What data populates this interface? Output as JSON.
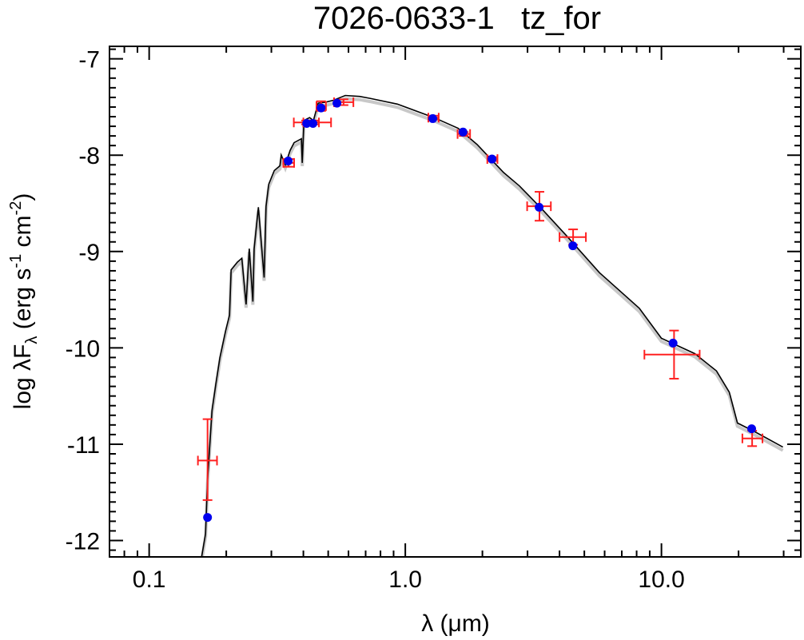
{
  "chart_data": {
    "type": "scatter",
    "title": "7026-0633-1   tz_for",
    "xlabel": "λ (μm)",
    "ylabel": {
      "prefix": "log λF",
      "sub": "λ",
      "units_open": " (erg s",
      "sup1": "-1",
      "units_mid": " cm",
      "sup2": "-2",
      "units_close": ")"
    },
    "x_scale": "log",
    "xlim": [
      0.07,
      35
    ],
    "ylim": [
      -12.17,
      -6.87
    ],
    "x_ticks": [
      {
        "value": 0.1,
        "label": "0.1"
      },
      {
        "value": 1.0,
        "label": "1.0"
      },
      {
        "value": 10.0,
        "label": "10.0"
      }
    ],
    "y_ticks": [
      {
        "value": -7,
        "label": "-7"
      },
      {
        "value": -8,
        "label": "-8"
      },
      {
        "value": -9,
        "label": "-9"
      },
      {
        "value": -10,
        "label": "-10"
      },
      {
        "value": -11,
        "label": "-11"
      },
      {
        "value": -12,
        "label": "-12"
      }
    ],
    "grid": false,
    "colors": {
      "model": "#000000",
      "model_shadow": "#c8c8c8",
      "observed": "#ff2020",
      "synthetic": "#0000ee"
    },
    "model_curve": {
      "x": [
        0.16,
        0.166,
        0.169,
        0.176,
        0.182,
        0.189,
        0.199,
        0.206,
        0.209,
        0.221,
        0.23,
        0.239,
        0.246,
        0.254,
        0.257,
        0.267,
        0.281,
        0.286,
        0.293,
        0.308,
        0.324,
        0.328,
        0.34,
        0.355,
        0.368,
        0.393,
        0.396,
        0.402,
        0.423,
        0.438,
        0.457,
        0.488,
        0.524,
        0.583,
        0.664,
        0.729,
        0.931,
        1.295,
        1.607,
        1.909,
        2.42,
        2.79,
        3.39,
        4.24,
        5.73,
        8.2,
        10.0,
        13.5,
        16.4,
        18.4,
        19.8,
        23.5,
        29.8
      ],
      "y": [
        -12.18,
        -11.93,
        -11.37,
        -10.65,
        -10.38,
        -10.1,
        -9.82,
        -9.66,
        -9.19,
        -9.11,
        -9.07,
        -9.55,
        -8.97,
        -9.52,
        -8.97,
        -8.54,
        -9.27,
        -8.53,
        -8.3,
        -8.16,
        -8.11,
        -8.0,
        -8.1,
        -7.95,
        -7.87,
        -7.83,
        -8.08,
        -7.64,
        -7.61,
        -7.64,
        -7.46,
        -7.45,
        -7.43,
        -7.38,
        -7.39,
        -7.41,
        -7.47,
        -7.61,
        -7.72,
        -7.89,
        -8.18,
        -8.32,
        -8.55,
        -8.83,
        -9.22,
        -9.59,
        -9.9,
        -10.06,
        -10.24,
        -10.46,
        -10.78,
        -10.88,
        -11.03
      ]
    },
    "observed": [
      {
        "x": 0.169,
        "y": -11.17,
        "xlo": 0.155,
        "xhi": 0.184,
        "ylo": -11.58,
        "yhi": -10.74
      },
      {
        "x": 0.35,
        "y": -8.08,
        "xlo": 0.334,
        "xhi": 0.368,
        "ylo": -8.12,
        "yhi": -8.04
      },
      {
        "x": 0.41,
        "y": -7.66,
        "xlo": 0.367,
        "xhi": 0.46,
        "ylo": -7.68,
        "yhi": -7.64
      },
      {
        "x": 0.44,
        "y": -7.66,
        "xlo": 0.4,
        "xhi": 0.513,
        "ylo": -7.68,
        "yhi": -7.64
      },
      {
        "x": 0.469,
        "y": -7.49,
        "xlo": 0.45,
        "xhi": 0.49,
        "ylo": -7.54,
        "yhi": -7.44
      },
      {
        "x": 0.574,
        "y": -7.45,
        "xlo": 0.527,
        "xhi": 0.627,
        "ylo": -7.48,
        "yhi": -7.42
      },
      {
        "x": 1.29,
        "y": -7.61,
        "xlo": 1.23,
        "xhi": 1.35,
        "ylo": -7.63,
        "yhi": -7.59
      },
      {
        "x": 1.69,
        "y": -7.78,
        "xlo": 1.6,
        "xhi": 1.79,
        "ylo": -7.8,
        "yhi": -7.76
      },
      {
        "x": 2.19,
        "y": -8.04,
        "xlo": 2.09,
        "xhi": 2.29,
        "ylo": -8.06,
        "yhi": -8.02
      },
      {
        "x": 3.34,
        "y": -8.53,
        "xlo": 2.99,
        "xhi": 3.7,
        "ylo": -8.68,
        "yhi": -8.38
      },
      {
        "x": 4.52,
        "y": -8.85,
        "xlo": 4.0,
        "xhi": 5.07,
        "ylo": -8.93,
        "yhi": -8.77
      },
      {
        "x": 11.2,
        "y": -10.07,
        "xlo": 8.58,
        "xhi": 14.1,
        "ylo": -10.32,
        "yhi": -9.82
      },
      {
        "x": 22.6,
        "y": -10.94,
        "xlo": 20.7,
        "xhi": 24.8,
        "ylo": -11.02,
        "yhi": -10.86
      }
    ],
    "model_points": [
      {
        "x": 0.169,
        "y": -11.76
      },
      {
        "x": 0.349,
        "y": -8.06
      },
      {
        "x": 0.412,
        "y": -7.67
      },
      {
        "x": 0.436,
        "y": -7.67
      },
      {
        "x": 0.469,
        "y": -7.51
      },
      {
        "x": 0.541,
        "y": -7.46
      },
      {
        "x": 1.28,
        "y": -7.62
      },
      {
        "x": 1.68,
        "y": -7.76
      },
      {
        "x": 2.18,
        "y": -8.04
      },
      {
        "x": 3.33,
        "y": -8.54
      },
      {
        "x": 4.51,
        "y": -8.94
      },
      {
        "x": 11.1,
        "y": -9.95
      },
      {
        "x": 22.5,
        "y": -10.84
      }
    ]
  }
}
